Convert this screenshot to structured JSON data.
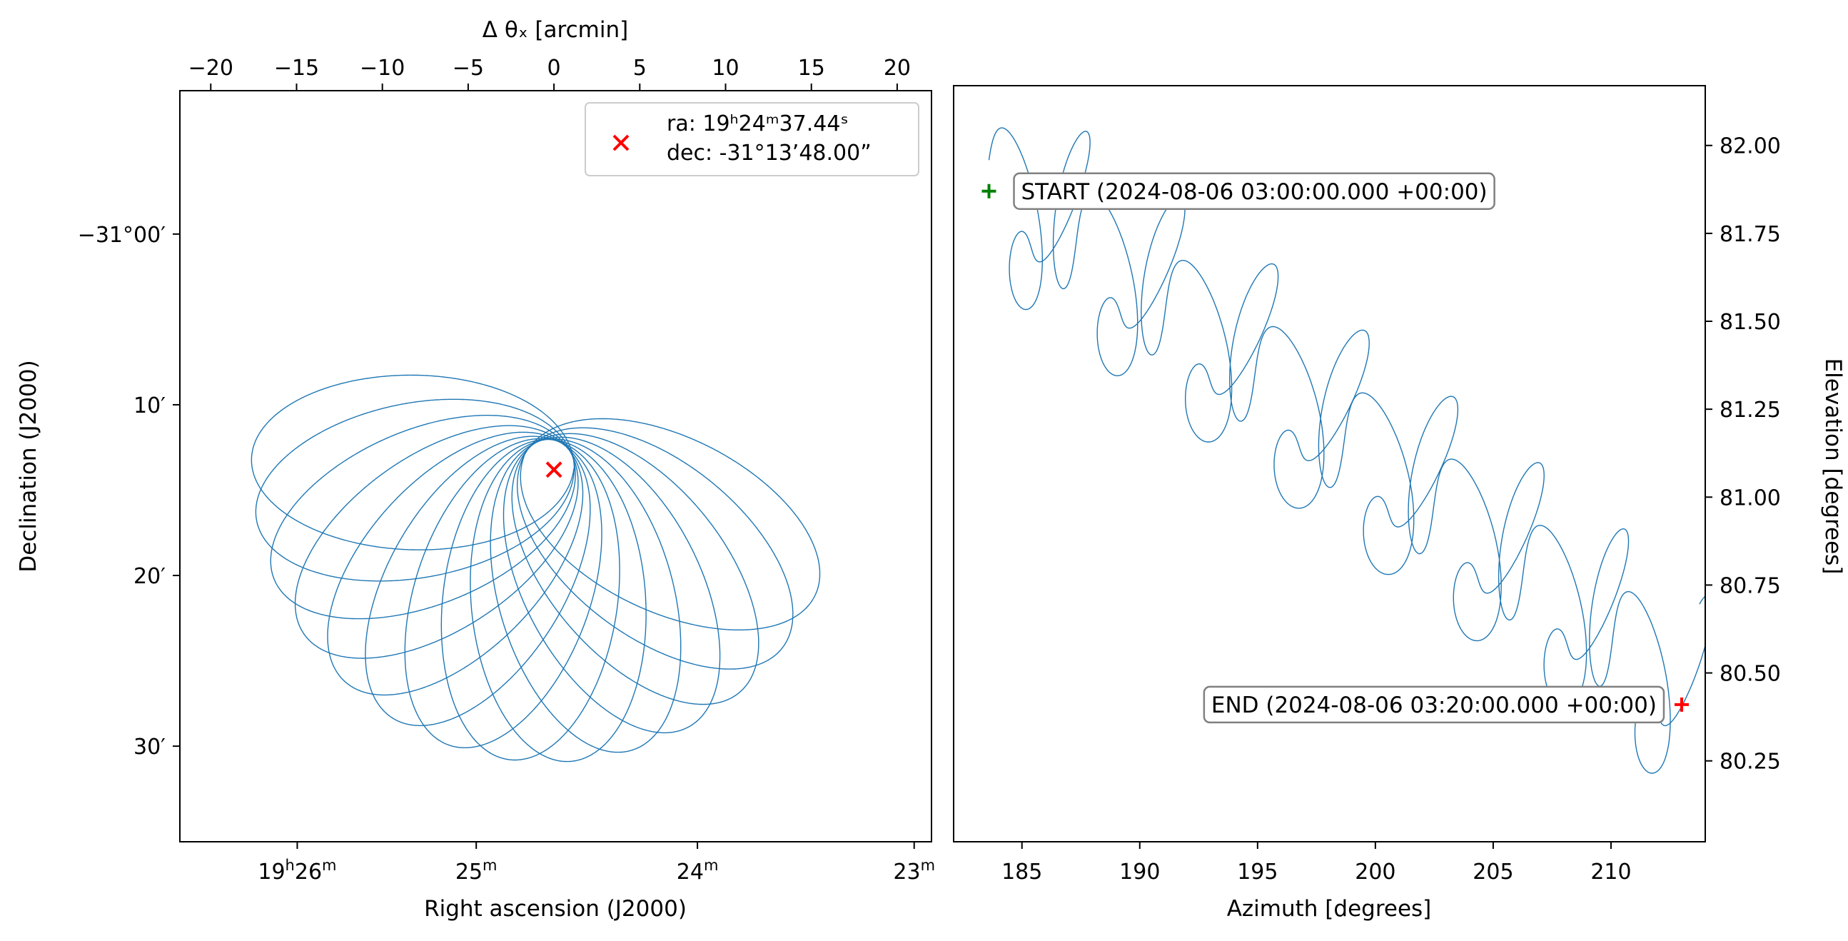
{
  "colors": {
    "trace": "#1f77b4",
    "start": "#008000",
    "end": "#ff0000",
    "center": "#ff0000",
    "axes": "#000000"
  },
  "chart_data": [
    {
      "type": "line",
      "panel": "sky",
      "xlabel": "Right ascension (J2000)",
      "ylabel": "Declination (J2000)",
      "top_xlabel": "Δ θₓ [arcmin]",
      "top_xticks": {
        "values": [
          -20,
          -15,
          -10,
          -5,
          0,
          5,
          10,
          15,
          20
        ],
        "labels": [
          "−20",
          "−15",
          "−10",
          "−5",
          "0",
          "5",
          "10",
          "15",
          "20"
        ]
      },
      "top_xlim": [
        -21.8,
        22.0
      ],
      "ra_ticks": [
        {
          "offset_arcmin": -14.96,
          "main": "19",
          "h": "h",
          "min": "26",
          "m": "m"
        },
        {
          "offset_arcmin": -4.53,
          "main": "25",
          "h": "",
          "min": "",
          "m": "m"
        },
        {
          "offset_arcmin": 8.36,
          "main": "24",
          "h": "",
          "min": "",
          "m": "m"
        },
        {
          "offset_arcmin": 20.99,
          "main": "23",
          "h": "",
          "min": "",
          "m": "m"
        }
      ],
      "dec_ticks": [
        {
          "dec_arcmin": -1860,
          "label": "−31°00′"
        },
        {
          "dec_arcmin": -1870,
          "label": "10′"
        },
        {
          "dec_arcmin": -1880,
          "label": "20′"
        },
        {
          "dec_arcmin": -1890,
          "label": "30′"
        }
      ],
      "ylim_dec_arcmin": [
        -1895.6,
        -1851.6
      ],
      "center": {
        "ra_label": "ra:  19ʰ24ᵐ37.44ˢ",
        "dec_label": "dec: -31°13’48.00”",
        "dec_arcmin": -1873.8
      },
      "legend_position": "upper right",
      "pattern": {
        "petals": 14,
        "radius_arcmin": 20,
        "sweep_halfwidth_arcmin": 5.5
      }
    },
    {
      "type": "line",
      "panel": "horizon",
      "xlabel": "Azimuth [degrees]",
      "ylabel": "Elevation [degrees]",
      "xticks": [
        185,
        190,
        195,
        200,
        205,
        210
      ],
      "yticks": [
        80.25,
        80.5,
        80.75,
        81.0,
        81.25,
        81.5,
        81.75,
        82.0
      ],
      "ytick_labels": [
        "80.25",
        "80.50",
        "80.75",
        "81.00",
        "81.25",
        "81.50",
        "81.75",
        "82.00"
      ],
      "xlim": [
        182.1,
        214.0
      ],
      "ylim": [
        80.02,
        82.17
      ],
      "start": {
        "az": 183.6,
        "el": 81.87,
        "label": "START (2024-08-06 03:00:00.000 +00:00)"
      },
      "end": {
        "az": 213.0,
        "el": 80.41,
        "label": "END (2024-08-06 03:20:00.000 +00:00)"
      }
    }
  ]
}
